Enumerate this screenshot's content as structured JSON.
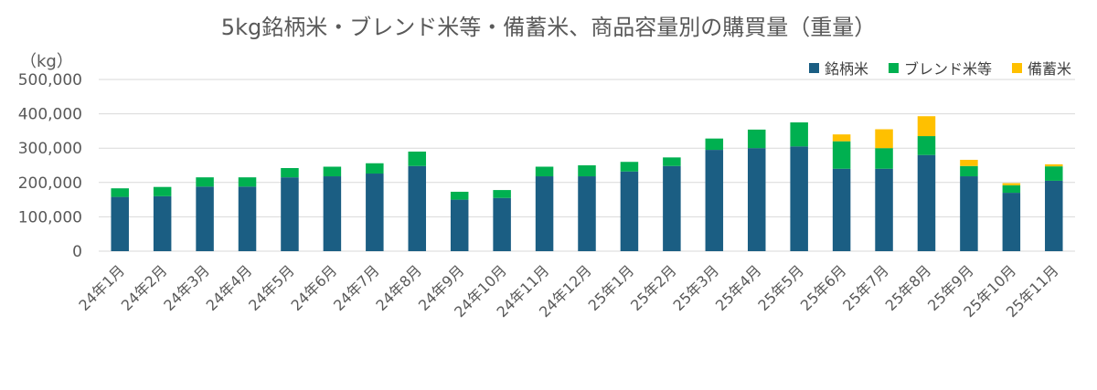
{
  "chart_data": {
    "type": "bar",
    "stacked": true,
    "title": "5kg銘柄米・ブレンド米等・備蓄米、商品容量別の購買量（重量）",
    "unit": "（kg）",
    "categories": [
      "24年1月",
      "24年2月",
      "24年3月",
      "24年4月",
      "24年5月",
      "24年6月",
      "24年7月",
      "24年8月",
      "24年9月",
      "24年10月",
      "24年11月",
      "24年12月",
      "25年1月",
      "25年2月",
      "25年3月",
      "25年4月",
      "25年5月",
      "25年6月",
      "25年7月",
      "25年8月",
      "25年9月",
      "25年10月",
      "25年11月"
    ],
    "series": [
      {
        "name": "銘柄米",
        "color": "#1b5e83",
        "values": [
          158000,
          160000,
          188000,
          188000,
          215000,
          218000,
          226000,
          248000,
          150000,
          155000,
          218000,
          218000,
          232000,
          248000,
          295000,
          300000,
          305000,
          240000,
          240000,
          280000,
          218000,
          170000,
          205000
        ]
      },
      {
        "name": "ブレンド米等",
        "color": "#00b050",
        "values": [
          25000,
          27000,
          27000,
          27000,
          27000,
          28000,
          30000,
          42000,
          23000,
          23000,
          28000,
          32000,
          28000,
          25000,
          33000,
          54000,
          70000,
          80000,
          60000,
          55000,
          30000,
          22000,
          42000
        ]
      },
      {
        "name": "備蓄米",
        "color": "#ffc000",
        "values": [
          0,
          0,
          0,
          0,
          0,
          0,
          0,
          0,
          0,
          0,
          0,
          0,
          0,
          0,
          0,
          0,
          0,
          20000,
          55000,
          58000,
          18000,
          6000,
          6000
        ]
      }
    ],
    "ylim": [
      0,
      500000
    ],
    "yticks": [
      "0",
      "100,000",
      "200,000",
      "300,000",
      "400,000",
      "500,000"
    ],
    "grid": true,
    "legend_position": "top-right"
  }
}
